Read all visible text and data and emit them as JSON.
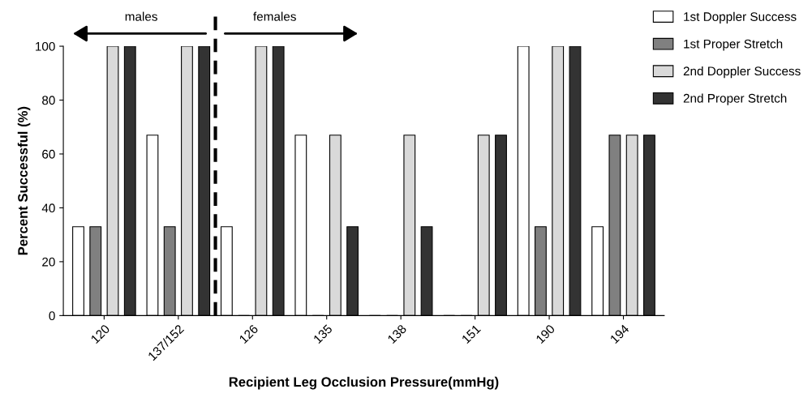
{
  "chart_data": {
    "type": "bar",
    "categories": [
      "120",
      "137/152",
      "126",
      "135",
      "138",
      "151",
      "190",
      "194"
    ],
    "series": [
      {
        "name": "1st Doppler Success",
        "color": "#ffffff",
        "values": [
          33,
          67,
          33,
          67,
          0,
          0,
          100,
          33
        ]
      },
      {
        "name": "1st Proper Stretch",
        "color": "#808080",
        "values": [
          33,
          33,
          0,
          0,
          0,
          0,
          33,
          67
        ]
      },
      {
        "name": "2nd Doppler Success",
        "color": "#d9d9d9",
        "values": [
          100,
          100,
          100,
          67,
          67,
          67,
          100,
          67
        ]
      },
      {
        "name": "2nd Proper Stretch",
        "color": "#333333",
        "values": [
          100,
          100,
          100,
          33,
          33,
          67,
          100,
          67
        ]
      }
    ],
    "xlabel": "Recipient Leg Occlusion Pressure(mmHg)",
    "ylabel": "Percent Successful (%)",
    "ylim": [
      0,
      100
    ],
    "yticks": [
      0,
      20,
      40,
      60,
      80,
      100
    ],
    "annotations": [
      "males",
      "females"
    ],
    "legend": "top right",
    "grid": false
  }
}
